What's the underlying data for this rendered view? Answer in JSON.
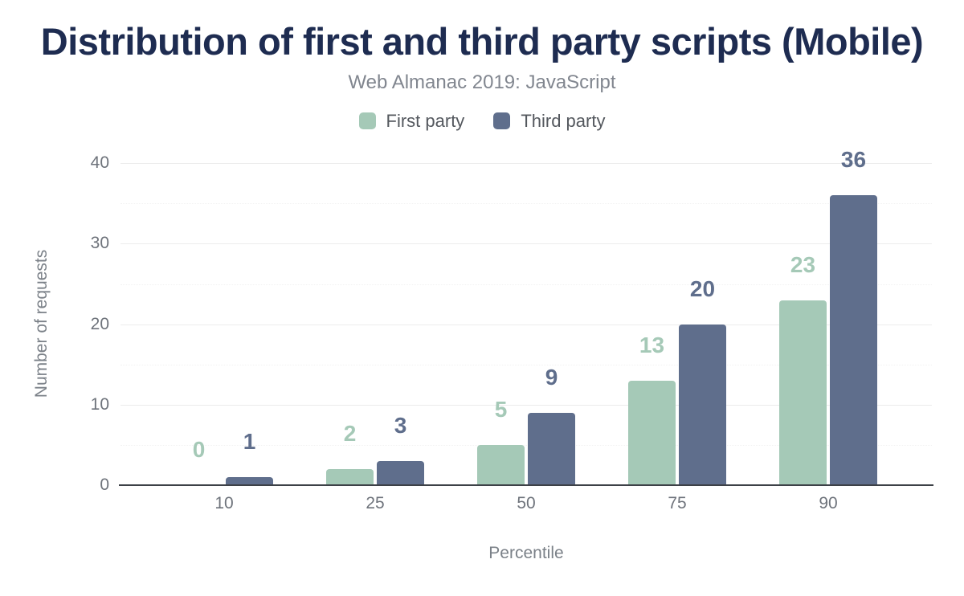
{
  "header": {
    "title": "Distribution of first and third party scripts (Mobile)",
    "subtitle": "Web Almanac 2019: JavaScript"
  },
  "legend": [
    {
      "label": "First party",
      "color": "#a5c9b7"
    },
    {
      "label": "Third party",
      "color": "#5f6e8c"
    }
  ],
  "chart_data": {
    "type": "bar",
    "title": "Distribution of first and third party scripts (Mobile)",
    "subtitle": "Web Almanac 2019: JavaScript",
    "categories": [
      "10",
      "25",
      "50",
      "75",
      "90"
    ],
    "series": [
      {
        "name": "First party",
        "color": "#a5c9b7",
        "values": [
          0,
          2,
          5,
          13,
          23
        ]
      },
      {
        "name": "Third party",
        "color": "#5f6e8c",
        "values": [
          1,
          3,
          9,
          20,
          36
        ]
      }
    ],
    "xlabel": "Percentile",
    "ylabel": "Number of requests",
    "ylim": [
      0,
      40
    ],
    "yticks": [
      0,
      10,
      20,
      30,
      40
    ],
    "minor_yticks": [
      5,
      15,
      25,
      35
    ],
    "grid": true,
    "legend_position": "top",
    "bar_value_labels_shown": true
  },
  "colors": {
    "background": "#ffffff",
    "title": "#1e2c51",
    "subtitle": "#81868f",
    "axis_line": "#3d4147",
    "tick_label": "#6e737b",
    "axis_title": "#7b8188",
    "grid_major": "#ececec",
    "grid_minor": "#f2f2f2"
  }
}
